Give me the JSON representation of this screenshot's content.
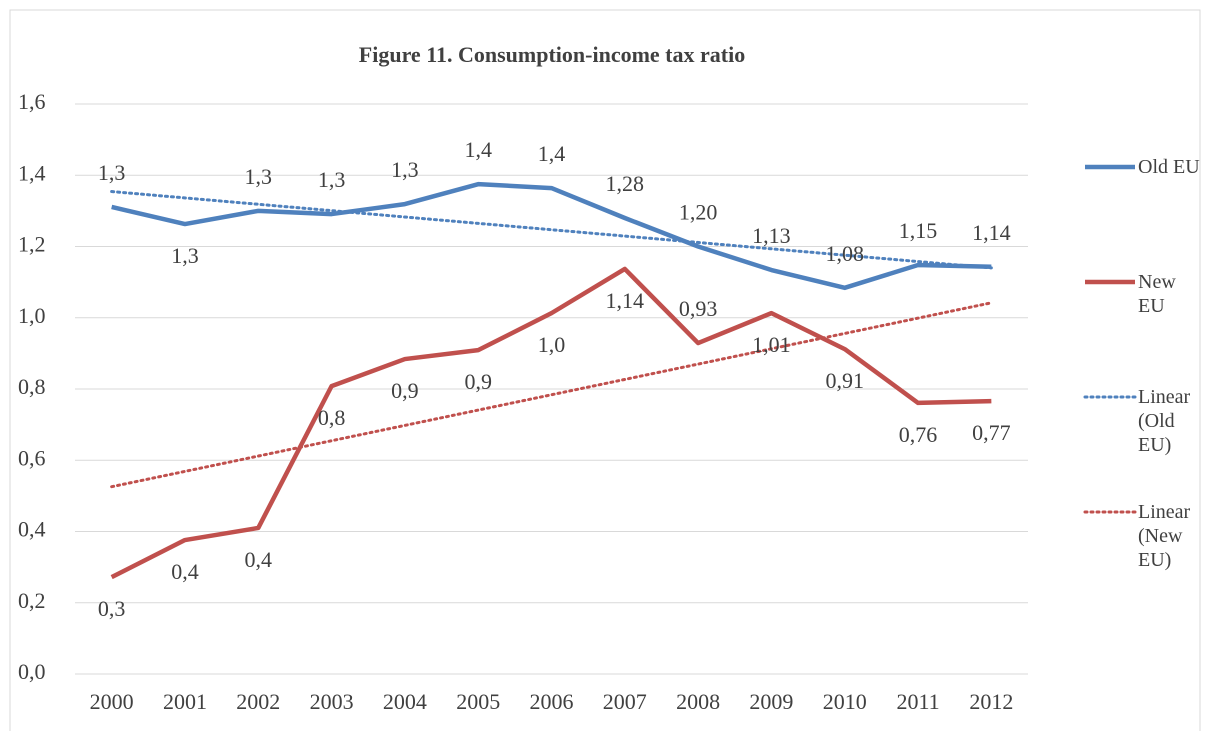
{
  "chart_data": {
    "type": "line",
    "title": "Figure 11. Consumption-income tax ratio",
    "categories": [
      "2000",
      "2001",
      "2002",
      "2003",
      "2004",
      "2005",
      "2006",
      "2007",
      "2008",
      "2009",
      "2010",
      "2011",
      "2012"
    ],
    "series": [
      {
        "name": "Old EU",
        "color": "#4f81bd",
        "values": [
          1.311,
          1.263,
          1.3,
          1.291,
          1.319,
          1.375,
          1.364,
          1.28,
          1.2,
          1.134,
          1.084,
          1.148,
          1.143
        ],
        "value_labels": [
          "1,3",
          "1,3",
          "1,3",
          "1,3",
          "1,3",
          "1,4",
          "1,4",
          "1,28",
          "1,20",
          "1,13",
          "1,08",
          "1,15",
          "1,14"
        ],
        "trendline": {
          "type": "linear",
          "name": "Linear (Old EU)"
        }
      },
      {
        "name": "New EU",
        "color": "#c0504d",
        "values": [
          0.272,
          0.376,
          0.41,
          0.808,
          0.884,
          0.909,
          1.013,
          1.137,
          0.929,
          1.013,
          0.912,
          0.761,
          0.766
        ],
        "value_labels": [
          "0,3",
          "0,4",
          "0,4",
          "0,8",
          "0,9",
          "0,9",
          "1,0",
          "1,14",
          "0,93",
          "1,01",
          "0,91",
          "0,76",
          "0,77"
        ],
        "trendline": {
          "type": "linear",
          "name": "Linear (New EU)"
        }
      }
    ],
    "ylim": [
      0,
      1.6
    ],
    "yticks": [
      {
        "value": 0,
        "label": "0,0"
      },
      {
        "value": 0.2,
        "label": "0,2"
      },
      {
        "value": 0.4,
        "label": "0,4"
      },
      {
        "value": 0.6,
        "label": "0,6"
      },
      {
        "value": 0.8,
        "label": "0,8"
      },
      {
        "value": 1,
        "label": "1,0"
      },
      {
        "value": 1.2,
        "label": "1,2"
      },
      {
        "value": 1.4,
        "label": "1,4"
      },
      {
        "value": 1.6,
        "label": "1,6"
      }
    ],
    "grid": true,
    "legend": "right"
  }
}
